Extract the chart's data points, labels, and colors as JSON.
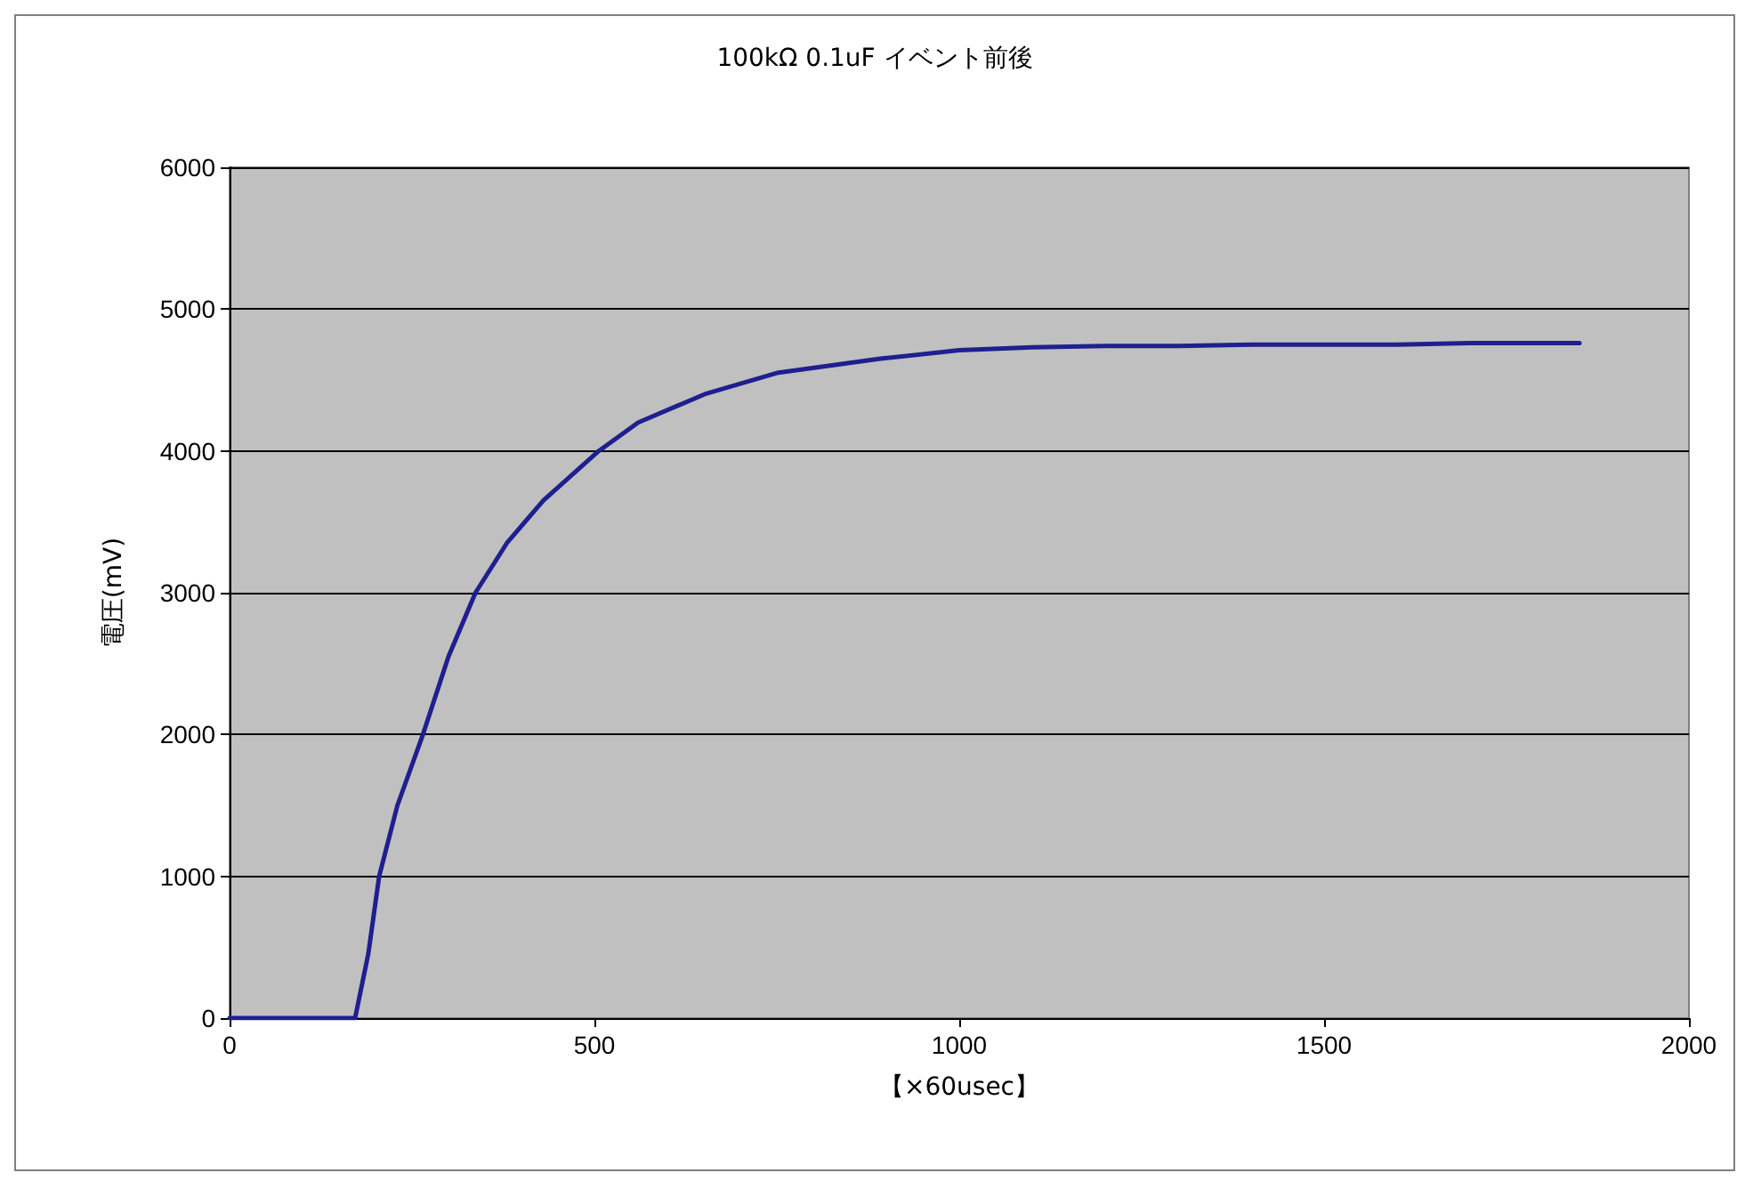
{
  "chart_data": {
    "type": "line",
    "title": "100kΩ 0.1uF イベント前後",
    "xlabel": "【×60usec】",
    "ylabel": "電圧(mV)",
    "x": [
      0,
      100,
      170,
      172,
      190,
      205,
      230,
      265,
      300,
      337,
      380,
      430,
      506,
      560,
      651,
      750,
      892,
      1000,
      1100,
      1200,
      1300,
      1400,
      1500,
      1600,
      1700,
      1800,
      1850
    ],
    "series": [
      {
        "color": "#1f1f8f",
        "values": [
          0,
          0,
          0,
          0,
          450,
          1000,
          1500,
          2000,
          2550,
          3000,
          3350,
          3650,
          4000,
          4200,
          4400,
          4550,
          4650,
          4710,
          4730,
          4740,
          4740,
          4750,
          4750,
          4750,
          4760,
          4760,
          4760
        ]
      }
    ],
    "xlim": [
      0,
      2000
    ],
    "xticks": [
      0,
      500,
      1000,
      1500,
      2000
    ],
    "ylim": [
      0,
      6000
    ],
    "yticks": [
      0,
      1000,
      2000,
      3000,
      4000,
      5000,
      6000
    ],
    "grid": "y",
    "marker": "none",
    "line_style": "solid"
  }
}
